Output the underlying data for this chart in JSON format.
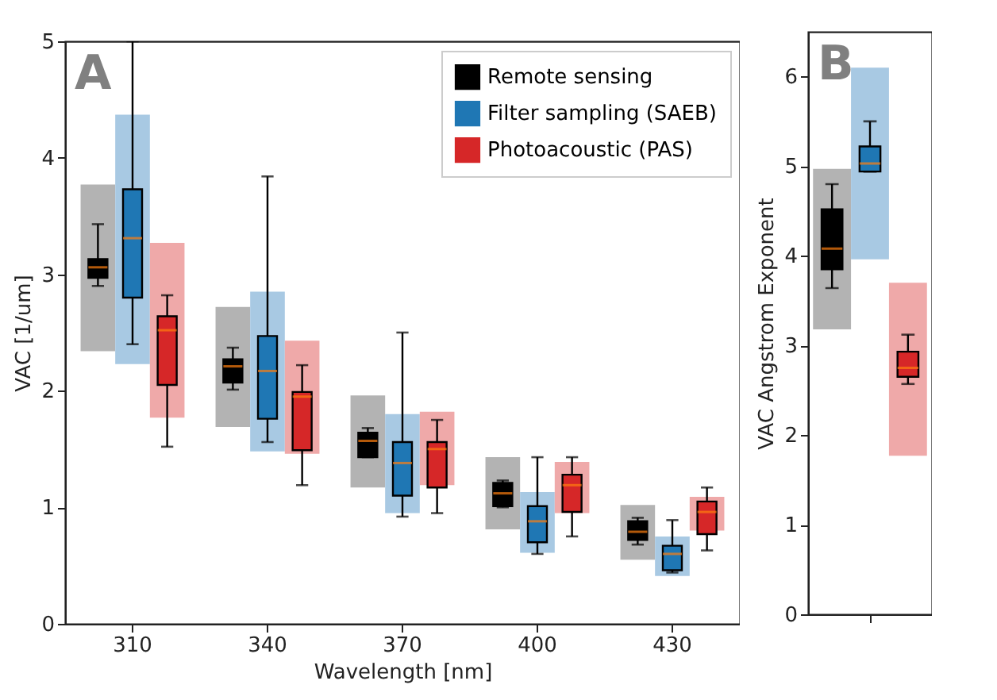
{
  "chart_data": [
    {
      "type": "box",
      "xlabel": "Wavelength [nm]",
      "ylabel": "VAC [1/um]",
      "categories": [
        "310",
        "340",
        "370",
        "400",
        "430"
      ],
      "ylim": [
        0,
        5
      ],
      "yticks": [
        0,
        1,
        2,
        3,
        4,
        5
      ],
      "grid": false,
      "legend": "top right",
      "annotations": [
        "A"
      ],
      "series": [
        {
          "type": "box",
          "name": "Remote sensing",
          "color": "#000000",
          "boxes": [
            {
              "low": 2.9,
              "q1": 2.97,
              "median": 3.06,
              "q3": 3.13,
              "high": 3.43
            },
            {
              "low": 2.01,
              "q1": 2.07,
              "median": 2.21,
              "q3": 2.27,
              "high": 2.37
            },
            {
              "low": 1.43,
              "q1": 1.43,
              "median": 1.57,
              "q3": 1.64,
              "high": 1.68
            },
            {
              "low": 1.0,
              "q1": 1.01,
              "median": 1.12,
              "q3": 1.21,
              "high": 1.23
            },
            {
              "low": 0.68,
              "q1": 0.72,
              "median": 0.79,
              "q3": 0.88,
              "high": 0.91
            }
          ]
        },
        {
          "type": "box",
          "name": "Filter sampling (SAEB)",
          "color": "#1f77b4",
          "boxes": [
            {
              "low": 2.4,
              "q1": 2.8,
              "median": 3.31,
              "q3": 3.73,
              "high": 5.0
            },
            {
              "low": 1.56,
              "q1": 1.76,
              "median": 2.17,
              "q3": 2.47,
              "high": 3.84
            },
            {
              "low": 0.92,
              "q1": 1.1,
              "median": 1.38,
              "q3": 1.56,
              "high": 2.5
            },
            {
              "low": 0.6,
              "q1": 0.7,
              "median": 0.88,
              "q3": 1.01,
              "high": 1.43
            },
            {
              "low": 0.44,
              "q1": 0.46,
              "median": 0.6,
              "q3": 0.67,
              "high": 0.89
            }
          ]
        },
        {
          "type": "box",
          "name": "Photoacoustic (PAS)",
          "color": "#d62728",
          "boxes": [
            {
              "low": 1.52,
              "q1": 2.05,
              "median": 2.52,
              "q3": 2.64,
              "high": 2.82
            },
            {
              "low": 1.19,
              "q1": 1.49,
              "median": 1.95,
              "q3": 1.99,
              "high": 2.22
            },
            {
              "low": 0.95,
              "q1": 1.17,
              "median": 1.5,
              "q3": 1.56,
              "high": 1.75
            },
            {
              "low": 0.75,
              "q1": 0.96,
              "median": 1.19,
              "q3": 1.28,
              "high": 1.43
            },
            {
              "low": 0.63,
              "q1": 0.77,
              "median": 0.96,
              "q3": 1.05,
              "high": 1.17
            }
          ]
        },
        {
          "type": "bar",
          "color": "#b3b3b3",
          "base": [
            2.34,
            1.69,
            1.17,
            0.81,
            0.55
          ],
          "values": [
            1.43,
            1.03,
            0.79,
            0.62,
            0.47
          ]
        },
        {
          "type": "bar",
          "color": "#a8c9e3",
          "base": [
            2.23,
            1.48,
            0.95,
            0.61,
            0.41
          ],
          "values": [
            2.14,
            1.37,
            0.85,
            0.52,
            0.34
          ]
        },
        {
          "type": "bar",
          "color": "#efa9a9",
          "base": [
            1.77,
            1.46,
            1.19,
            0.95,
            0.8
          ],
          "values": [
            1.5,
            0.97,
            0.63,
            0.44,
            0.29
          ]
        }
      ]
    },
    {
      "type": "box",
      "ylabel": "VAC Angstrom Exponent",
      "categories": [
        null
      ],
      "ylim": [
        0,
        6.5
      ],
      "yticks": [
        0,
        1,
        2,
        3,
        4,
        5,
        6
      ],
      "grid": false,
      "annotations": [
        "B"
      ],
      "series": [
        {
          "type": "box",
          "color": "#000000",
          "boxes": [
            {
              "low": 3.64,
              "q1": 3.85,
              "median": 4.08,
              "q3": 4.52,
              "high": 4.8
            }
          ]
        },
        {
          "type": "box",
          "color": "#1f77b4",
          "boxes": [
            {
              "low": 4.94,
              "q1": 4.94,
              "median": 5.03,
              "q3": 5.22,
              "high": 5.5
            }
          ]
        },
        {
          "type": "box",
          "color": "#d62728",
          "boxes": [
            {
              "low": 2.57,
              "q1": 2.65,
              "median": 2.75,
              "q3": 2.93,
              "high": 3.12
            }
          ]
        },
        {
          "type": "bar",
          "color": "#b3b3b3",
          "base": [
            3.18
          ],
          "values": [
            1.79
          ]
        },
        {
          "type": "bar",
          "color": "#a8c9e3",
          "base": [
            3.96
          ],
          "values": [
            2.14
          ]
        },
        {
          "type": "bar",
          "color": "#efa9a9",
          "base": [
            1.77
          ],
          "values": [
            1.93
          ]
        }
      ]
    }
  ]
}
